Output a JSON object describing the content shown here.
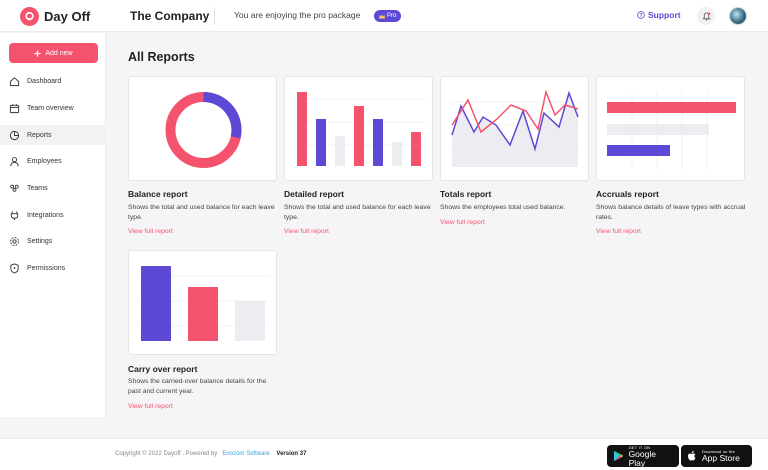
{
  "header": {
    "brand": "Day Off",
    "company": "The Company",
    "package_text": "You are enjoying the pro package",
    "pro_badge": "Pro",
    "support": "Support"
  },
  "sidebar": {
    "add_button": "Add new",
    "items": [
      {
        "label": "Dashboard",
        "icon": "home-icon",
        "active": false
      },
      {
        "label": "Team overview",
        "icon": "calendar-icon",
        "active": false
      },
      {
        "label": "Reports",
        "icon": "pie-chart-icon",
        "active": true
      },
      {
        "label": "Employees",
        "icon": "user-icon",
        "active": false
      },
      {
        "label": "Teams",
        "icon": "team-icon",
        "active": false
      },
      {
        "label": "Integrations",
        "icon": "plug-icon",
        "active": false
      },
      {
        "label": "Settings",
        "icon": "gear-icon",
        "active": false
      },
      {
        "label": "Permissions",
        "icon": "shield-icon",
        "active": false
      }
    ]
  },
  "main": {
    "title": "All Reports",
    "link_text": "View full report",
    "cards": [
      {
        "title": "Balance report",
        "description": "Shows the total and used balance for each leave type."
      },
      {
        "title": "Detailed report",
        "description": "Shows the total and used balance for each leave type."
      },
      {
        "title": "Totals report",
        "description": "Shows the employees total used balance."
      },
      {
        "title": "Accruals report",
        "description": "Shows balance details of leave types with accrual rates."
      },
      {
        "title": "Carry over report",
        "description": "Shows the carried-over balance details for the past and current year."
      }
    ]
  },
  "footer": {
    "copyright": "Copyright © 2022 Dayoff . Powered by",
    "company": "Enozom Software",
    "version": "Version 37",
    "google_play_small": "GET IT ON",
    "google_play": "Google Play",
    "app_store_small": "Download on the",
    "app_store": "App Store"
  },
  "colors": {
    "accent": "#f5536d",
    "purple": "#5c49d6",
    "grey_bar": "#ececf1"
  }
}
